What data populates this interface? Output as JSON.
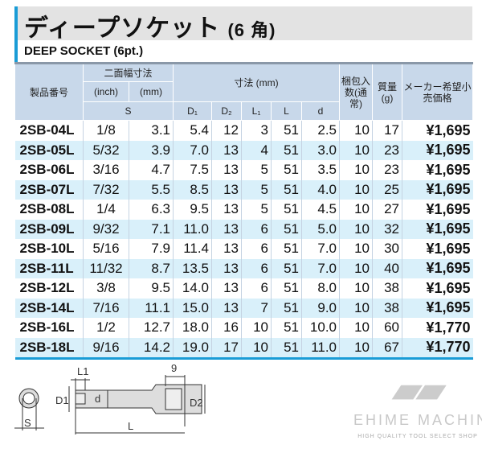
{
  "title": {
    "main": "ディープソケット",
    "suffix": "(6 角)"
  },
  "subtitle": "DEEP SOCKET (6pt.)",
  "headers": {
    "part_no": "製品番号",
    "across_flats": "二面幅寸法",
    "inch": "(inch)",
    "mm": "(mm)",
    "s": "S",
    "dims": "寸法 (mm)",
    "d1": "D₁",
    "d2": "D₂",
    "l1": "L₁",
    "l": "L",
    "d": "d",
    "pack": "梱包入数(通常)",
    "weight": "質量(g)",
    "price": "メーカー希望小売価格"
  },
  "rows": [
    [
      "2SB-04L",
      "1/8",
      "3.1",
      "5.4",
      "12",
      "3",
      "51",
      "2.5",
      "10",
      "17",
      "¥1,695"
    ],
    [
      "2SB-05L",
      "5/32",
      "3.9",
      "7.0",
      "13",
      "4",
      "51",
      "3.0",
      "10",
      "23",
      "¥1,695"
    ],
    [
      "2SB-06L",
      "3/16",
      "4.7",
      "7.5",
      "13",
      "5",
      "51",
      "3.5",
      "10",
      "23",
      "¥1,695"
    ],
    [
      "2SB-07L",
      "7/32",
      "5.5",
      "8.5",
      "13",
      "5",
      "51",
      "4.0",
      "10",
      "25",
      "¥1,695"
    ],
    [
      "2SB-08L",
      "1/4",
      "6.3",
      "9.5",
      "13",
      "5",
      "51",
      "4.5",
      "10",
      "27",
      "¥1,695"
    ],
    [
      "2SB-09L",
      "9/32",
      "7.1",
      "11.0",
      "13",
      "6",
      "51",
      "5.0",
      "10",
      "32",
      "¥1,695"
    ],
    [
      "2SB-10L",
      "5/16",
      "7.9",
      "11.4",
      "13",
      "6",
      "51",
      "7.0",
      "10",
      "30",
      "¥1,695"
    ],
    [
      "2SB-11L",
      "11/32",
      "8.7",
      "13.5",
      "13",
      "6",
      "51",
      "7.0",
      "10",
      "40",
      "¥1,695"
    ],
    [
      "2SB-12L",
      "3/8",
      "9.5",
      "14.0",
      "13",
      "6",
      "51",
      "8.0",
      "10",
      "38",
      "¥1,695"
    ],
    [
      "2SB-14L",
      "7/16",
      "11.1",
      "15.0",
      "13",
      "7",
      "51",
      "9.0",
      "10",
      "38",
      "¥1,695"
    ],
    [
      "2SB-16L",
      "1/2",
      "12.7",
      "18.0",
      "16",
      "10",
      "51",
      "10.0",
      "10",
      "60",
      "¥1,770"
    ],
    [
      "2SB-18L",
      "9/16",
      "14.2",
      "19.0",
      "17",
      "10",
      "51",
      "11.0",
      "10",
      "67",
      "¥1,770"
    ]
  ],
  "diagram": {
    "l1": "L1",
    "nine": "9",
    "d1": "D1",
    "d": "d",
    "d2": "D2",
    "l": "L",
    "s": "S"
  },
  "logo": {
    "name": "EHIME MACHINE",
    "tagline": "HIGH QUALITY TOOL SELECT SHOP",
    "mark": "EM"
  },
  "colors": {
    "accent": "#1a9cd6",
    "header": "#c8d8ea",
    "alt_row": "#d9f0fa"
  }
}
